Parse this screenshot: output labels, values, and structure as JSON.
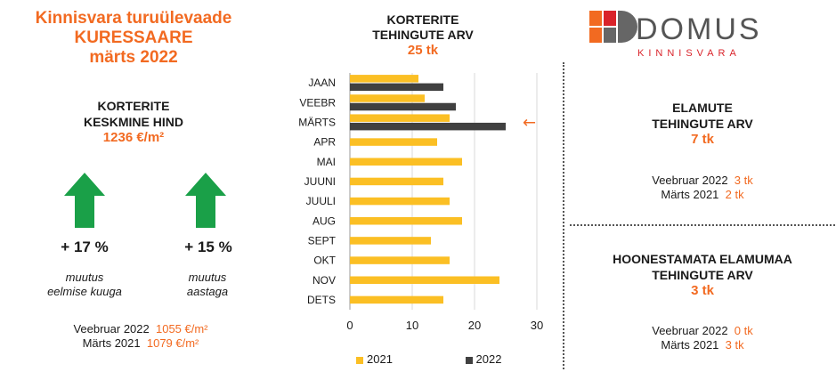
{
  "header": {
    "line1": "Kinnisvara turuülevaade",
    "line2": "KURESSAARE",
    "line3": "märts 2022"
  },
  "avg_price": {
    "title_line1": "KORTERITE",
    "title_line2": "KESKMINE HIND",
    "value": "1236 €/m²"
  },
  "change_month": {
    "pct": "+ 17 %",
    "desc_line1": "muutus",
    "desc_line2": "eelmise kuuga"
  },
  "change_year": {
    "pct": "+ 15 %",
    "desc_line1": "muutus",
    "desc_line2": "aastaga"
  },
  "price_compare": [
    {
      "label": "Veebruar 2022",
      "value": "1055 €/m²"
    },
    {
      "label": "Märts 2021",
      "value": "1079 €/m²"
    }
  ],
  "apartments": {
    "title_line1": "KORTERITE",
    "title_line2": "TEHINGUTE ARV",
    "value": "25 tk"
  },
  "houses": {
    "title_line1": "ELAMUTE",
    "title_line2": "TEHINGUTE ARV",
    "value": "7 tk",
    "compare": [
      {
        "label": "Veebruar 2022",
        "value": "3 tk"
      },
      {
        "label": "Märts 2021",
        "value": "2 tk"
      }
    ]
  },
  "land": {
    "title_line1": "HOONESTAMATA ELAMUMAA",
    "title_line2": "TEHINGUTE ARV",
    "value": "3 tk",
    "compare": [
      {
        "label": "Veebruar 2022",
        "value": "0 tk"
      },
      {
        "label": "Märts 2021",
        "value": "3 tk"
      }
    ]
  },
  "logo": {
    "name": "DOMUS",
    "sub": "KINNISVARA"
  },
  "chart_data": {
    "type": "bar",
    "orientation": "horizontal",
    "categories": [
      "JAAN",
      "VEEBR",
      "MÄRTS",
      "APR",
      "MAI",
      "JUUNI",
      "JUULI",
      "AUG",
      "SEPT",
      "OKT",
      "NOV",
      "DETS"
    ],
    "series": [
      {
        "name": "2021",
        "color": "#fbbf24",
        "values": [
          11,
          12,
          16,
          14,
          18,
          15,
          16,
          18,
          13,
          16,
          24,
          15
        ]
      },
      {
        "name": "2022",
        "color": "#404040",
        "values": [
          15,
          17,
          25,
          null,
          null,
          null,
          null,
          null,
          null,
          null,
          null,
          null
        ]
      }
    ],
    "xlim": [
      0,
      30
    ],
    "xticks": [
      0,
      10,
      20,
      30
    ],
    "grid": true,
    "legend": "bottom",
    "annotation": {
      "category": "MÄRTS",
      "symbol": "←",
      "color": "#f26a21"
    }
  }
}
